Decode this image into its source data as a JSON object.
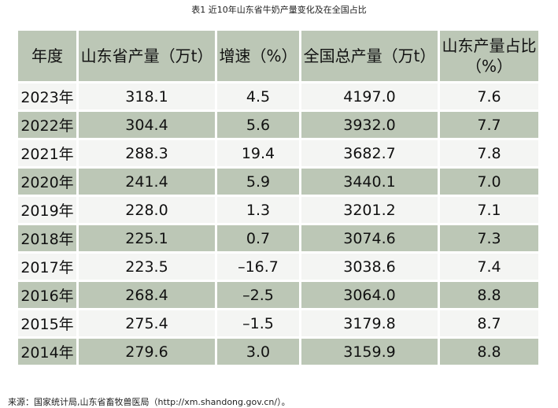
{
  "caption": "表1 近10年山东省牛奶产量变化及在全国占比",
  "columns": [
    "年度",
    "山东省产量（万t）",
    "增速（%）",
    "全国总产量（万t）",
    "山东产量占比（%）"
  ],
  "rows": [
    [
      "2023年",
      "318.1",
      "4.5",
      "4197.0",
      "7.6"
    ],
    [
      "2022年",
      "304.4",
      "5.6",
      "3932.0",
      "7.7"
    ],
    [
      "2021年",
      "288.3",
      "19.4",
      "3682.7",
      "7.8"
    ],
    [
      "2020年",
      "241.4",
      "5.9",
      "3440.1",
      "7.0"
    ],
    [
      "2019年",
      "228.0",
      "1.3",
      "3201.2",
      "7.1"
    ],
    [
      "2018年",
      "225.1",
      "0.7",
      "3074.6",
      "7.3"
    ],
    [
      "2017年",
      "223.5",
      "–16.7",
      "3038.6",
      "7.4"
    ],
    [
      "2016年",
      "268.4",
      "–2.5",
      "3064.0",
      "8.8"
    ],
    [
      "2015年",
      "275.4",
      "–1.5",
      "3179.8",
      "8.7"
    ],
    [
      "2014年",
      "279.6",
      "3.0",
      "3159.9",
      "8.8"
    ]
  ],
  "source": "来源：国家统计局,山东省畜牧兽医局（http://xm.shandong.gov.cn/）。",
  "colors": {
    "header_bg": "#bcc7b6",
    "stripe_bg": "#bcc7b6",
    "row_bg": "#f4f5f3"
  }
}
